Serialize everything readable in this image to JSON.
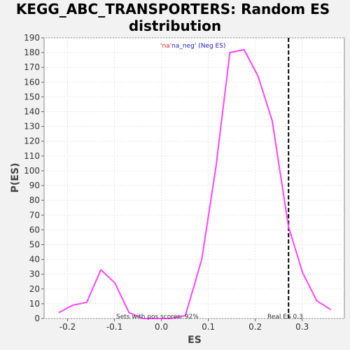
{
  "chart_data": {
    "type": "line",
    "title_line1": "KEGG_ABC_TRANSPORTERS: Random ES",
    "title_line2": "distribution",
    "xlabel": "ES",
    "ylabel": "P(ES)",
    "xlim": [
      -0.25,
      0.39
    ],
    "ylim": [
      0,
      190
    ],
    "x_ticks": [
      -0.2,
      -0.1,
      0.0,
      0.1,
      0.2,
      0.3
    ],
    "x_tick_labels": [
      "-0.2",
      "-0.1",
      "0.0",
      "0.1",
      "0.2",
      "0.3"
    ],
    "y_ticks": [
      0,
      10,
      20,
      30,
      40,
      50,
      60,
      70,
      80,
      90,
      100,
      110,
      120,
      130,
      140,
      150,
      160,
      170,
      180,
      190
    ],
    "grid": true,
    "series": [
      {
        "color": "#ff44ff",
        "x": [
          -0.219,
          -0.189,
          -0.159,
          -0.129,
          -0.099,
          -0.069,
          -0.039,
          -0.009,
          0.021,
          0.051,
          0.086,
          0.116,
          0.146,
          0.176,
          0.206,
          0.236,
          0.271,
          0.301,
          0.331,
          0.361
        ],
        "y": [
          4,
          9,
          11,
          33,
          24,
          4,
          0,
          0,
          0,
          2,
          40,
          102,
          180,
          182,
          164,
          134,
          62,
          31,
          12,
          6
        ]
      }
    ],
    "real_es": 0.271,
    "legend": {
      "part1": "'na'",
      "part1_color": "#dd2222",
      "part2": "na_neg' (Neg ES)",
      "part2_color": "#2222cc"
    },
    "annotation_left": "Sets with pos scores: 92%",
    "annotation_right": "Real ES 0.3"
  }
}
